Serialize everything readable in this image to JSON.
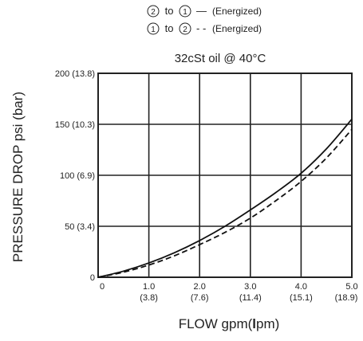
{
  "chart_data": {
    "type": "line",
    "legend": [
      {
        "from": "2",
        "to": "1",
        "connector": "to",
        "dash": "—",
        "note": "(Energized)",
        "style": "solid"
      },
      {
        "from": "1",
        "to": "2",
        "connector": "to",
        "dash": "- -",
        "note": "(Energized)",
        "style": "dashed"
      }
    ],
    "subtitle": "32cSt oil @ 40°C",
    "xlabel": {
      "prefix": "FLOW gpm(",
      "bold": "l",
      "suffix": "pm)"
    },
    "ylabel": "PRESSURE DROP psi (bar)",
    "xlim": [
      0,
      5
    ],
    "ylim": [
      0,
      200
    ],
    "x_ticks": [
      {
        "value": 0,
        "label": "0",
        "sub": ""
      },
      {
        "value": 1,
        "label": "1.0",
        "sub": "(3.8)"
      },
      {
        "value": 2,
        "label": "2.0",
        "sub": "(7.6)"
      },
      {
        "value": 3,
        "label": "3.0",
        "sub": "(11.4)"
      },
      {
        "value": 4,
        "label": "4.0",
        "sub": "(15.1)"
      },
      {
        "value": 5,
        "label": "5.0",
        "sub": "(18.9)"
      }
    ],
    "y_ticks": [
      {
        "value": 0,
        "label": "0"
      },
      {
        "value": 50,
        "label": "50 (3.4)"
      },
      {
        "value": 100,
        "label": "100 (6.9)"
      },
      {
        "value": 150,
        "label": "150 (10.3)"
      },
      {
        "value": 200,
        "label": "200 (13.8)"
      }
    ],
    "grid": true,
    "series": [
      {
        "style": "solid",
        "x": [
          0,
          0.5,
          1,
          1.5,
          2,
          2.5,
          3,
          3.5,
          4,
          4.5,
          5
        ],
        "y": [
          0,
          6,
          14,
          24,
          36,
          50,
          66,
          83,
          102,
          126,
          155
        ]
      },
      {
        "style": "dashed",
        "x": [
          0,
          0.5,
          1,
          1.5,
          2,
          2.5,
          3,
          3.5,
          4,
          4.5,
          5
        ],
        "y": [
          0,
          5,
          12,
          21,
          32,
          44,
          58,
          75,
          94,
          117,
          145
        ]
      }
    ]
  }
}
